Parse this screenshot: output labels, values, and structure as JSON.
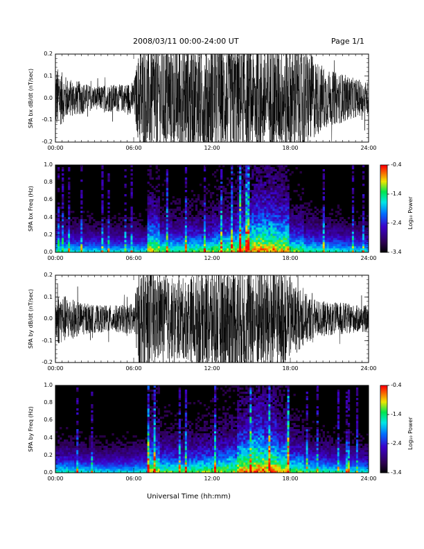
{
  "header": {
    "title": "2008/03/11   00:00-24:00 UT",
    "page": "Page 1/1"
  },
  "xaxis_label": "Universal Time (hh:mm)",
  "chart_data": [
    {
      "type": "line",
      "ylabel": "SPA bx dB/dt (nT/sec)",
      "xlabel": "",
      "x_ticks": [
        "00:00",
        "06:00",
        "12:00",
        "18:00",
        "24:00"
      ],
      "y_ticks": [
        "0.2",
        "0.1",
        "0.0",
        "-0.1",
        "-0.2"
      ],
      "xlim": [
        0,
        24
      ],
      "ylim": [
        -0.2,
        0.2
      ],
      "series": [
        {
          "x": [
            0,
            1,
            2,
            3,
            4,
            5,
            6,
            6.5,
            7,
            8,
            9,
            10,
            11,
            12,
            13,
            14,
            15,
            16,
            17,
            18,
            19,
            20,
            21,
            22,
            23,
            24
          ],
          "y_amplitude": [
            0.12,
            0.07,
            0.06,
            0.04,
            0.05,
            0.05,
            0.06,
            0.2,
            0.2,
            0.2,
            0.2,
            0.2,
            0.2,
            0.2,
            0.2,
            0.2,
            0.2,
            0.2,
            0.2,
            0.2,
            0.2,
            0.14,
            0.1,
            0.09,
            0.07,
            0.06
          ]
        }
      ]
    },
    {
      "type": "heatmap",
      "ylabel": "SPA bx Freq (Hz)",
      "xlabel": "",
      "x_ticks": [
        "00:00",
        "06:00",
        "12:00",
        "18:00",
        "24:00"
      ],
      "y_ticks": [
        "1.0",
        "0.8",
        "0.6",
        "0.4",
        "0.2",
        "0.0"
      ],
      "xlim": [
        0,
        24
      ],
      "ylim": [
        0,
        1.0
      ],
      "colorbar": {
        "label": "Log₁₀ Power",
        "ticks": [
          "-0.4",
          "-1.4",
          "-2.4",
          "-3.4"
        ],
        "range": [
          -3.4,
          -0.4
        ]
      },
      "activity": [
        0.25,
        0.2,
        0.18,
        0.15,
        0.15,
        0.15,
        0.2,
        0.7,
        0.45,
        0.4,
        0.45,
        0.45,
        0.55,
        0.6,
        0.75,
        0.85,
        0.85,
        0.8,
        0.5,
        0.35,
        0.3,
        0.25,
        0.2,
        0.18,
        0.15
      ]
    },
    {
      "type": "line",
      "ylabel": "SPA by dB/dt (nT/sec)",
      "xlabel": "",
      "x_ticks": [
        "00:00",
        "06:00",
        "12:00",
        "18:00",
        "24:00"
      ],
      "y_ticks": [
        "0.2",
        "0.1",
        "0.0",
        "-0.1",
        "-0.2"
      ],
      "xlim": [
        0,
        24
      ],
      "ylim": [
        -0.2,
        0.2
      ],
      "series": [
        {
          "x": [
            0,
            1,
            2,
            3,
            4,
            5,
            6,
            6.5,
            7,
            8,
            9,
            10,
            11,
            12,
            13,
            14,
            15,
            16,
            17,
            18,
            19,
            20,
            21,
            22,
            23,
            24
          ],
          "y_amplitude": [
            0.1,
            0.08,
            0.06,
            0.05,
            0.05,
            0.05,
            0.06,
            0.2,
            0.2,
            0.16,
            0.15,
            0.15,
            0.18,
            0.2,
            0.2,
            0.2,
            0.2,
            0.2,
            0.2,
            0.15,
            0.1,
            0.07,
            0.06,
            0.06,
            0.05,
            0.05
          ]
        }
      ]
    },
    {
      "type": "heatmap",
      "ylabel": "SPA by Freq (Hz)",
      "xlabel": "",
      "x_ticks": [
        "00:00",
        "06:00",
        "12:00",
        "18:00",
        "24:00"
      ],
      "y_ticks": [
        "1.0",
        "0.8",
        "0.6",
        "0.4",
        "0.2",
        "0.0"
      ],
      "xlim": [
        0,
        24
      ],
      "ylim": [
        0,
        1.0
      ],
      "colorbar": {
        "label": "Log₁₀ Power",
        "ticks": [
          "-0.4",
          "-1.4",
          "-2.4",
          "-3.4"
        ],
        "range": [
          -3.4,
          -0.4
        ]
      },
      "activity": [
        0.25,
        0.22,
        0.18,
        0.15,
        0.15,
        0.15,
        0.2,
        0.65,
        0.45,
        0.4,
        0.45,
        0.5,
        0.55,
        0.6,
        0.8,
        0.9,
        0.85,
        0.75,
        0.5,
        0.35,
        0.3,
        0.25,
        0.2,
        0.18,
        0.15
      ]
    }
  ]
}
